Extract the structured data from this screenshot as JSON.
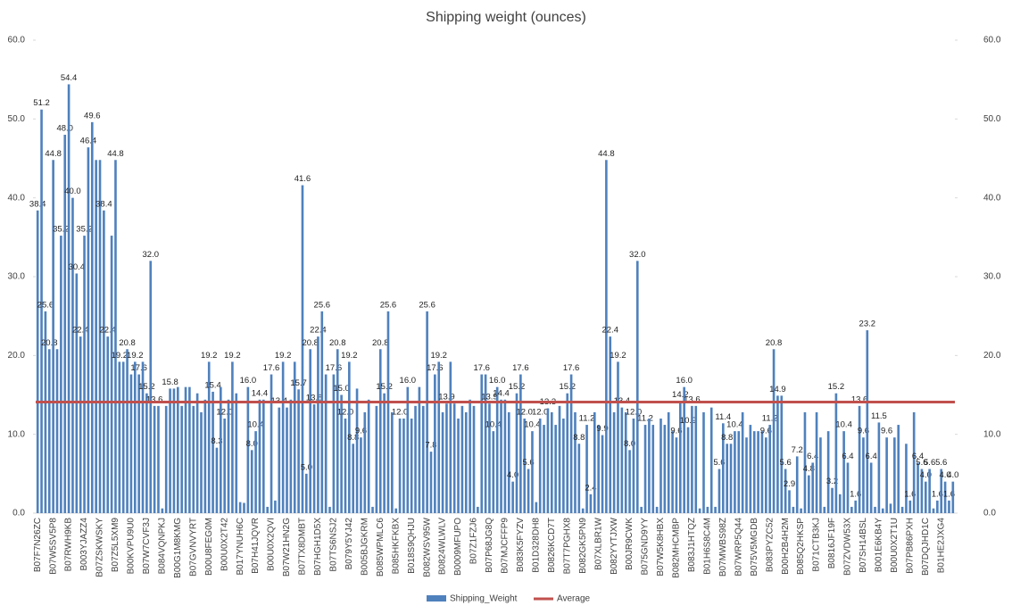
{
  "chart_data": {
    "type": "bar",
    "title": "Shipping weight (ounces)",
    "categories": [
      "B07F7N26ZC",
      null,
      null,
      null,
      "B07W5SV5P8",
      null,
      null,
      null,
      "B07RWH9KB",
      null,
      null,
      null,
      "B003YJAZZ4",
      null,
      null,
      null,
      "B07ZSKWSKY",
      null,
      null,
      null,
      "B07Z5L5XM9",
      null,
      null,
      null,
      "B00KVPU9U0",
      null,
      null,
      null,
      "B07W7CVF3J",
      null,
      null,
      null,
      "B084VQNPKJ",
      null,
      null,
      null,
      "B00G1M8KMG",
      null,
      null,
      null,
      "B07GVNVYRT",
      null,
      null,
      null,
      "B00U8FEG0M",
      null,
      null,
      null,
      "B00U0X2T42",
      null,
      null,
      null,
      "B017YNUH6C",
      null,
      null,
      null,
      "B07H41JQVR",
      null,
      null,
      null,
      "B00U0X2QVI",
      null,
      null,
      null,
      "B07W21HN2G",
      null,
      null,
      null,
      "B07TX8DMBT",
      null,
      null,
      null,
      "B07HGH1D5X",
      null,
      null,
      null,
      "B07TS6NSJ2",
      null,
      null,
      null,
      "B079Y5YJ42",
      null,
      null,
      null,
      "B005BJGKRM",
      null,
      null,
      null,
      "B085WPMLC6",
      null,
      null,
      null,
      "B085HKFKBX",
      null,
      null,
      null,
      "B018S9QHJU",
      null,
      null,
      null,
      "B082WSV95W",
      null,
      null,
      null,
      "B0824WLWLV",
      null,
      null,
      null,
      "B0009MFUPO",
      null,
      null,
      null,
      "B07Z1FZJ6",
      null,
      null,
      null,
      "B07P68JG8Q",
      null,
      null,
      null,
      "B07MJCFFP9",
      null,
      null,
      null,
      "B083K5FYZV",
      null,
      null,
      null,
      "B01D328DH8",
      null,
      null,
      null,
      "B0826KCD7T",
      null,
      null,
      null,
      "B07T7PGHX8",
      null,
      null,
      null,
      "B082GK5PN9",
      null,
      null,
      null,
      "B07XLBR1W",
      null,
      null,
      null,
      "B082YYTJXW",
      null,
      null,
      null,
      "B00JR9CWK",
      null,
      null,
      null,
      "B075GND9YY",
      null,
      null,
      null,
      "B07W5K8HBX",
      null,
      null,
      null,
      "B082MHCMBP",
      null,
      null,
      null,
      "B083J1HTQZ",
      null,
      null,
      null,
      "B01H6S8C4M",
      null,
      null,
      null,
      "B07MWBS98Z",
      null,
      null,
      null,
      "B07WRP5Q44",
      null,
      null,
      null,
      "B075V5MGDB",
      null,
      null,
      null,
      "B083PYZC52",
      null,
      null,
      null,
      "B00H2B4H2M",
      null,
      null,
      null,
      "B085Q2HKSP",
      null,
      null,
      null,
      "B071CTB3KJ",
      null,
      null,
      null,
      "B0816JF19F",
      null,
      null,
      null,
      "B07ZVDW53X",
      null,
      null,
      null,
      "B07SH14BSL",
      null,
      null,
      null,
      "B001E6KB4Y",
      null,
      null,
      null,
      "B00U0X2T1U",
      null,
      null,
      null,
      "B07PB86PXH",
      null,
      null,
      null,
      "B07DQJHD1C",
      null,
      null,
      null,
      "B01HE2JXG4",
      null,
      null,
      null
    ],
    "series": [
      {
        "name": "Shipping_Weight",
        "color": "#4f81bd",
        "values": [
          38.4,
          51.2,
          25.6,
          20.8,
          44.8,
          20.8,
          35.2,
          48.0,
          54.4,
          40.0,
          30.4,
          22.4,
          35.2,
          46.4,
          49.6,
          44.8,
          44.8,
          38.4,
          22.4,
          35.2,
          44.8,
          19.2,
          19.2,
          20.8,
          17.6,
          19.2,
          17.6,
          19.2,
          15.2,
          32.0,
          13.6,
          13.6,
          0.6,
          13.6,
          15.8,
          15.8,
          16.0,
          13.6,
          16.0,
          16.0,
          13.6,
          15.2,
          12.8,
          14.4,
          19.2,
          15.4,
          8.3,
          16.0,
          12.0,
          14.4,
          19.2,
          15.2,
          1.4,
          1.3,
          16.0,
          8.0,
          10.4,
          14.4,
          14.4,
          0.8,
          17.6,
          1.6,
          13.4,
          19.2,
          13.4,
          14.4,
          19.2,
          15.7,
          41.6,
          5.0,
          20.8,
          13.8,
          22.4,
          25.6,
          17.6,
          0.8,
          17.6,
          20.8,
          15.0,
          12.0,
          19.2,
          8.8,
          15.8,
          9.6,
          12.8,
          14.4,
          0.8,
          13.6,
          20.8,
          15.2,
          25.6,
          12.8,
          0.6,
          12.0,
          12.0,
          16.0,
          12.0,
          13.6,
          16.0,
          13.6,
          25.6,
          7.8,
          17.6,
          19.2,
          12.8,
          13.9,
          19.2,
          13.9,
          12.0,
          13.6,
          12.8,
          14.4,
          13.6,
          0.8,
          17.6,
          17.6,
          13.9,
          10.4,
          16.0,
          14.4,
          14.4,
          12.8,
          4.0,
          15.2,
          17.6,
          12.0,
          5.6,
          10.4,
          1.4,
          12.0,
          11.2,
          13.3,
          12.8,
          11.2,
          13.6,
          12.0,
          15.2,
          17.6,
          12.8,
          8.8,
          0.6,
          11.2,
          2.4,
          12.8,
          11.2,
          9.9,
          44.8,
          22.4,
          12.8,
          19.2,
          13.4,
          12.8,
          8.0,
          12.0,
          32.0,
          0.8,
          11.2,
          12.0,
          11.2,
          0.8,
          12.0,
          11.2,
          12.8,
          10.4,
          9.6,
          14.2,
          16.0,
          10.9,
          13.6,
          13.6,
          0.6,
          12.8,
          0.8,
          13.4,
          0.8,
          5.6,
          11.4,
          8.8,
          8.8,
          10.4,
          10.4,
          12.8,
          9.6,
          11.2,
          10.4,
          10.4,
          10.4,
          9.6,
          11.2,
          20.8,
          14.9,
          14.9,
          5.6,
          2.9,
          0.8,
          7.2,
          0.6,
          12.8,
          4.8,
          6.4,
          12.8,
          9.6,
          0.8,
          10.4,
          3.2,
          15.2,
          2.4,
          10.4,
          6.4,
          0.8,
          1.6,
          13.6,
          9.6,
          23.2,
          6.4,
          0.8,
          11.5,
          0.6,
          9.6,
          1.2,
          9.6,
          11.2,
          0.8,
          8.8,
          1.6,
          12.8,
          6.4,
          5.6,
          4.0,
          5.6,
          0.6,
          1.6,
          5.6,
          4.0,
          1.6,
          4.0
        ],
        "value_labels": [
          "38.4",
          "51.2",
          "25.6",
          "20.8",
          "44.8",
          null,
          "35.2",
          "48.0",
          "54.4",
          "40.0",
          "30.4",
          "22.4",
          "35.2",
          "46.4",
          "49.6",
          null,
          null,
          "38.4",
          "22.4",
          null,
          "44.8",
          "19.2",
          null,
          "20.8",
          null,
          "19.2",
          "17.6",
          null,
          "15.2",
          "32.0",
          "13.6",
          null,
          null,
          null,
          "15.8",
          null,
          null,
          null,
          null,
          null,
          null,
          null,
          null,
          null,
          "19.2",
          "15.4",
          "8.3",
          null,
          "12.0",
          null,
          "19.2",
          null,
          null,
          null,
          "16.0",
          "8.0",
          "10.4",
          "14.4",
          null,
          null,
          "17.6",
          null,
          "13.4",
          "19.2",
          null,
          null,
          null,
          "15.7",
          "41.6",
          "5.0",
          "20.8",
          "13.8",
          "22.4",
          "25.6",
          null,
          null,
          "17.6",
          "20.8",
          "15.0",
          "12.0",
          "19.2",
          "8.8",
          null,
          "9.6",
          null,
          null,
          null,
          null,
          "20.8",
          "15.2",
          "25.6",
          null,
          null,
          "12.0",
          null,
          "16.0",
          null,
          null,
          null,
          null,
          "25.6",
          "7.8",
          "17.6",
          "19.2",
          null,
          "13.9",
          null,
          null,
          null,
          null,
          null,
          null,
          null,
          null,
          "17.6",
          null,
          "13.9",
          "10.4",
          "16.0",
          "14.4",
          null,
          null,
          "4.0",
          "15.2",
          "17.6",
          "12.0",
          "5.6",
          "10.4",
          null,
          "12.0",
          null,
          "13.3",
          null,
          null,
          null,
          null,
          "15.2",
          "17.6",
          null,
          "8.8",
          null,
          "11.2",
          "2.4",
          null,
          null,
          "9.9",
          "44.8",
          "22.4",
          null,
          "19.2",
          "13.4",
          null,
          "8.0",
          "12.0",
          "32.0",
          null,
          "11.2",
          null,
          null,
          null,
          null,
          null,
          null,
          null,
          "9.6",
          "14.2",
          "16.0",
          "10.9",
          "13.6",
          null,
          null,
          null,
          null,
          null,
          null,
          "5.6",
          "11.4",
          "8.8",
          null,
          "10.4",
          null,
          null,
          null,
          null,
          null,
          null,
          null,
          "9.6",
          "11.2",
          "20.8",
          "14.9",
          null,
          "5.6",
          "2.9",
          null,
          "7.2",
          null,
          null,
          "4.8",
          "6.4",
          null,
          null,
          null,
          null,
          "3.2",
          "15.2",
          null,
          "10.4",
          "6.4",
          null,
          "1.6",
          "13.6",
          "9.6",
          "23.2",
          "6.4",
          null,
          "11.5",
          null,
          "9.6",
          null,
          null,
          null,
          null,
          null,
          "1.6",
          null,
          "6.4",
          "5.6",
          "4.0",
          "5.6",
          null,
          "1.6",
          "5.6",
          "4.0",
          "1.6",
          "4.0"
        ]
      }
    ],
    "average_line": {
      "name": "Average",
      "value": 14.1,
      "color": "#c0504d"
    },
    "ylim": [
      0,
      60
    ],
    "yticks": [
      {
        "value": 0,
        "label": "0.0"
      },
      {
        "value": 10,
        "label": "10.0"
      },
      {
        "value": 20,
        "label": "20.0"
      },
      {
        "value": 30,
        "label": "30.0"
      },
      {
        "value": 40,
        "label": "40.0"
      },
      {
        "value": 50,
        "label": "50.0"
      },
      {
        "value": 60,
        "label": "60.0"
      }
    ],
    "y2lim": [
      0,
      60
    ],
    "y2ticks": [
      {
        "value": 0,
        "label": "0.0"
      },
      {
        "value": 10,
        "label": "10.0"
      },
      {
        "value": 20,
        "label": "20.0"
      },
      {
        "value": 30,
        "label": "30.0"
      },
      {
        "value": 40,
        "label": "40.0"
      },
      {
        "value": 50,
        "label": "50.0"
      },
      {
        "value": 60,
        "label": "60.0"
      }
    ],
    "legend": "bottom"
  }
}
